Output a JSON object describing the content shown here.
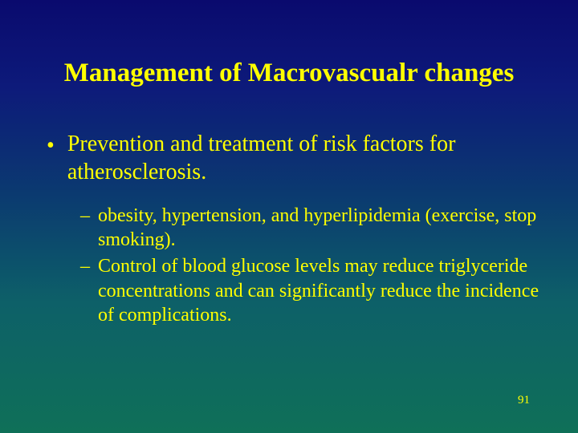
{
  "slide": {
    "title": "Management of Macrovascualr changes",
    "bullets_l1": [
      "Prevention and treatment of risk factors for atherosclerosis."
    ],
    "bullets_l2": [
      "obesity, hypertension, and hyperlipidemia (exercise, stop smoking).",
      "Control of blood glucose levels may reduce triglyceride concentrations and can significantly reduce the incidence of complications."
    ],
    "page_number": "91",
    "colors": {
      "text": "#ffff00",
      "bg_top": "#0a0a6e",
      "bg_bottom": "#0f7058"
    }
  }
}
